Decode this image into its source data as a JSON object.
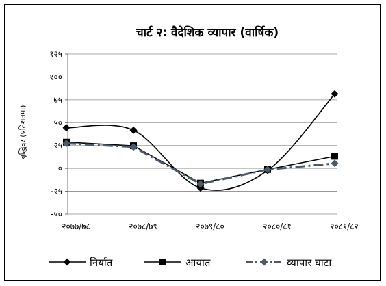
{
  "chart_data": {
    "type": "line",
    "title": "चार्ट २: वैदेशिक व्यापार (वार्षिक)",
    "ylabel": "वृद्धिदर (प्रतिशतमा)",
    "xlabel": "",
    "categories": [
      "२०७७/७८",
      "२०७८/७९",
      "२०७९/८०",
      "२०८०/८१",
      "२०८१/८२"
    ],
    "y_ticks": [
      {
        "value": 125,
        "label": "१२५"
      },
      {
        "value": 100,
        "label": "१००"
      },
      {
        "value": 75,
        "label": "७५"
      },
      {
        "value": 50,
        "label": "५०"
      },
      {
        "value": 25,
        "label": "२५"
      },
      {
        "value": 0,
        "label": "०"
      },
      {
        "value": -25,
        "label": "-२५"
      },
      {
        "value": -50,
        "label": "-५०"
      }
    ],
    "ylim": [
      -50,
      125
    ],
    "grid": true,
    "legend_position": "bottom",
    "series": [
      {
        "name": "निर्यात",
        "values": [
          44.4,
          41.7,
          -21.4,
          -2.2,
          81.4
        ],
        "color": "#000000",
        "marker": "diamond",
        "line_style": "solid",
        "curve": "smooth"
      },
      {
        "name": "आयात",
        "values": [
          28.7,
          24.7,
          -16.1,
          -1.2,
          13.3
        ],
        "color": "#000000",
        "marker": "square",
        "line_style": "solid",
        "curve": "straight"
      },
      {
        "name": "व्यापार घाटा",
        "values": [
          27.4,
          23.4,
          -17.0,
          -1.3,
          5.5
        ],
        "color": "#4a5a6a",
        "marker": "diamond",
        "line_style": "dashdot",
        "curve": "straight"
      }
    ]
  }
}
